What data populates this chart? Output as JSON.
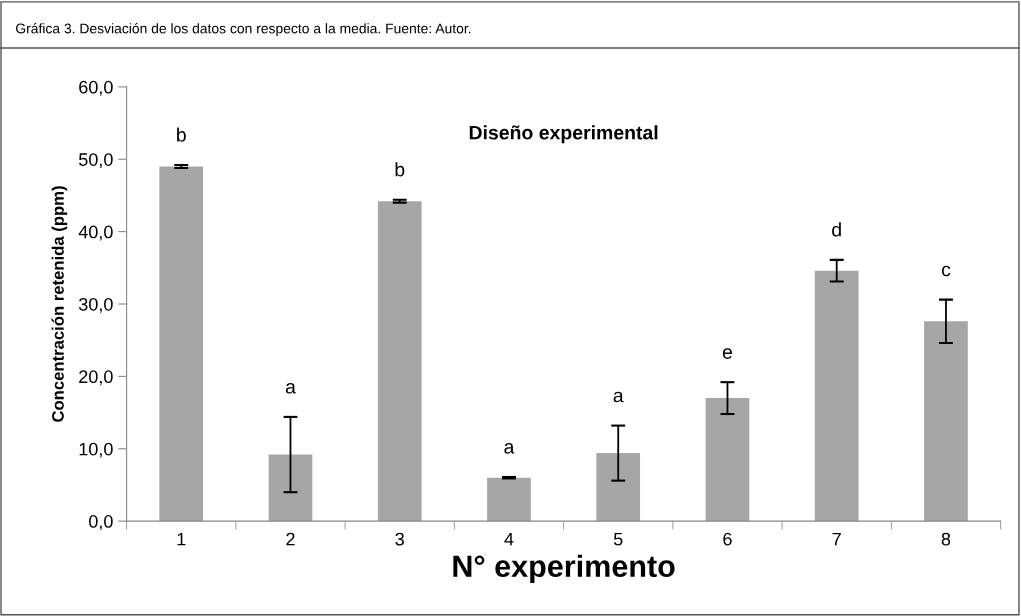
{
  "chart_data": {
    "type": "bar",
    "title": "Diseño experimental",
    "subtitle": "Gráfica 3. Desviación de los datos con respecto a la media. Fuente: Autor.",
    "xlabel": "N° experimento",
    "ylabel": "Concentración retenida (ppm)",
    "categories": [
      "1",
      "2",
      "3",
      "4",
      "5",
      "6",
      "7",
      "8"
    ],
    "values": [
      49.0,
      9.2,
      44.2,
      6.0,
      9.4,
      17.0,
      34.6,
      27.6
    ],
    "errors": [
      0.2,
      5.2,
      0.2,
      0.1,
      3.8,
      2.2,
      1.5,
      3.0
    ],
    "color": "#a6a6a6",
    "ylim": [
      0,
      60
    ],
    "yticks": [
      {
        "value": 0,
        "label": "0,0"
      },
      {
        "value": 10,
        "label": "10,0"
      },
      {
        "value": 20,
        "label": "20,0"
      },
      {
        "value": 30,
        "label": "30,0"
      },
      {
        "value": 40,
        "label": "40,0"
      },
      {
        "value": 50,
        "label": "50,0"
      },
      {
        "value": 60,
        "label": "60,0"
      }
    ],
    "value_labels": [
      "b",
      "a",
      "b",
      "a",
      "a",
      "e",
      "d",
      "c"
    ],
    "grid": false,
    "legend": false
  }
}
